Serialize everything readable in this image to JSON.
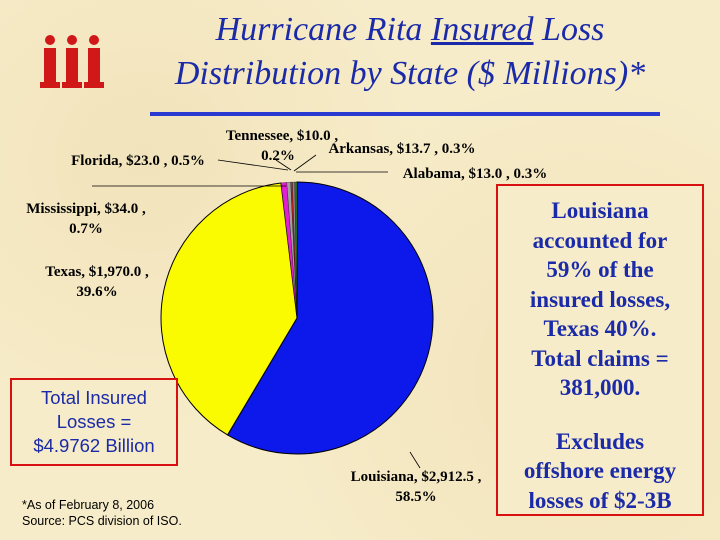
{
  "header": {
    "title_line1_pre": "Hurricane Rita ",
    "title_line1_underlined": "Insured",
    "title_line1_post": " Loss",
    "title_line2": "Distribution by State ($ Millions)*"
  },
  "colors": {
    "Louisiana": "#0d18ea",
    "Texas": "#fafa00",
    "Mississippi": "#e020d0",
    "Florida": "#a0a0a0",
    "Tennessee": "#cc2222",
    "Arkansas": "#888888",
    "Alabama": "#2a7a2a"
  },
  "chart_data": {
    "type": "pie",
    "unit": "$ Millions",
    "slices": [
      {
        "name": "Louisiana",
        "value": 2912.5,
        "percent": 58.5,
        "label_line1": "Louisiana, $2,912.5 ,",
        "label_line2": "58.5%"
      },
      {
        "name": "Texas",
        "value": 1970.0,
        "percent": 39.6,
        "label_line1": "Texas, $1,970.0 ,",
        "label_line2": "39.6%"
      },
      {
        "name": "Mississippi",
        "value": 34.0,
        "percent": 0.7,
        "label_line1": "Mississippi, $34.0 ,",
        "label_line2": "0.7%"
      },
      {
        "name": "Florida",
        "value": 23.0,
        "percent": 0.5,
        "label_line1": "Florida, $23.0 , 0.5%"
      },
      {
        "name": "Tennessee",
        "value": 10.0,
        "percent": 0.2,
        "label_line1": "Tennessee, $10.0 ,",
        "label_line2": "0.2%"
      },
      {
        "name": "Arkansas",
        "value": 13.7,
        "percent": 0.3,
        "label_line1": "Arkansas, $13.7 , 0.3%"
      },
      {
        "name": "Alabama",
        "value": 13.0,
        "percent": 0.3,
        "label_line1": "Alabama, $13.0 , 0.3%"
      }
    ]
  },
  "total_box": {
    "line1": "Total Insured",
    "line2": "Losses =",
    "line3": "$4.9762 Billion"
  },
  "notes": {
    "lines": [
      "Louisiana",
      "accounted for",
      "59% of the",
      "insured losses,",
      "Texas 40%.",
      "Total claims =",
      "381,000."
    ],
    "lines2": [
      "Excludes",
      "offshore energy",
      "losses of $2-3B"
    ]
  },
  "footnote": {
    "line1": "*As of February 8, 2006",
    "line2": "Source:  PCS division of ISO."
  }
}
